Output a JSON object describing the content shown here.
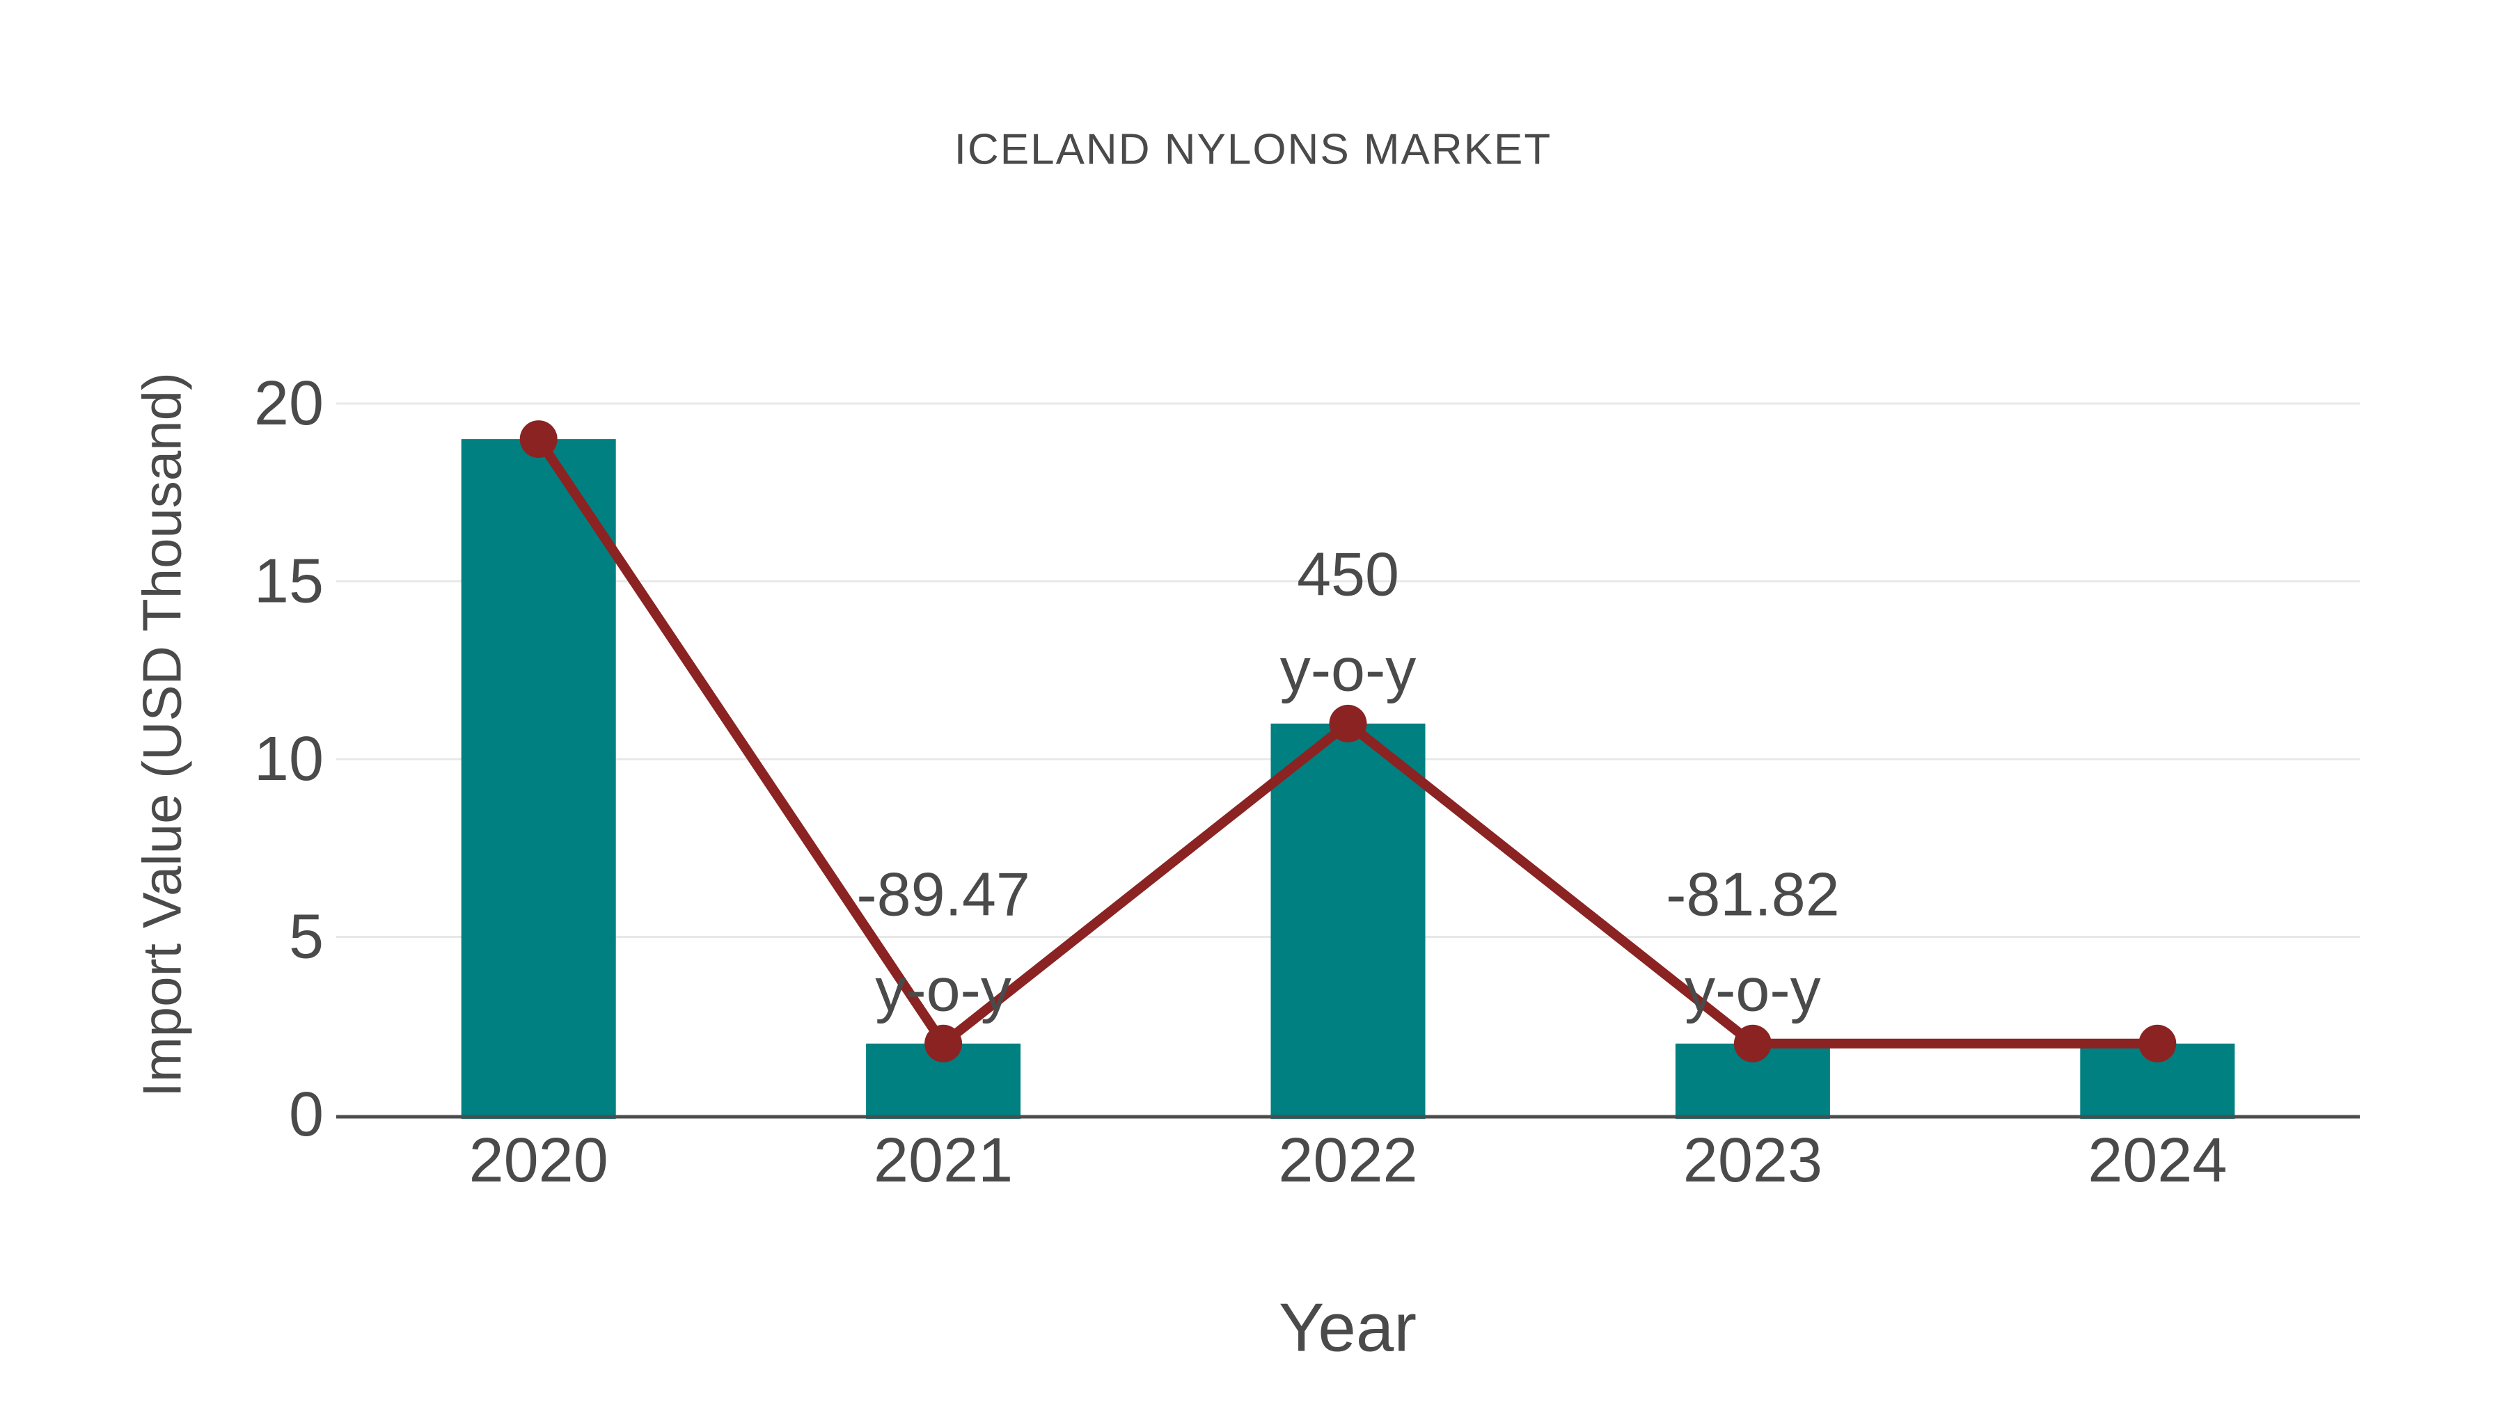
{
  "chart_data": {
    "type": "bar",
    "title": "ICELAND NYLONS MARKET",
    "xlabel": "Year",
    "ylabel": "Import Value (USD Thousand)",
    "categories": [
      "2020",
      "2021",
      "2022",
      "2023",
      "2024"
    ],
    "series": [
      {
        "name": "import-value-bars",
        "type": "bar",
        "values": [
          19,
          2,
          11,
          2,
          2
        ]
      },
      {
        "name": "import-value-trend-line",
        "type": "line",
        "values": [
          19,
          2,
          11,
          2,
          2
        ]
      }
    ],
    "annotations": [
      {
        "category_index": 1,
        "line1": "-89.47",
        "line2": "y-o-y"
      },
      {
        "category_index": 2,
        "line1": "450",
        "line2": "y-o-y"
      },
      {
        "category_index": 3,
        "line1": "-81.82",
        "line2": "y-o-y"
      }
    ],
    "yticks": [
      0,
      5,
      10,
      15,
      20
    ],
    "ylim": [
      0,
      20
    ],
    "grid": true,
    "legend_position": "none",
    "colors": {
      "bar": "#008080",
      "line": "#8B2323",
      "marker": "#8B2323",
      "text": "#4a4a4a",
      "gridline": "#e8e8e8",
      "axis_line": "#4d4d4d",
      "background": "#ffffff"
    }
  }
}
